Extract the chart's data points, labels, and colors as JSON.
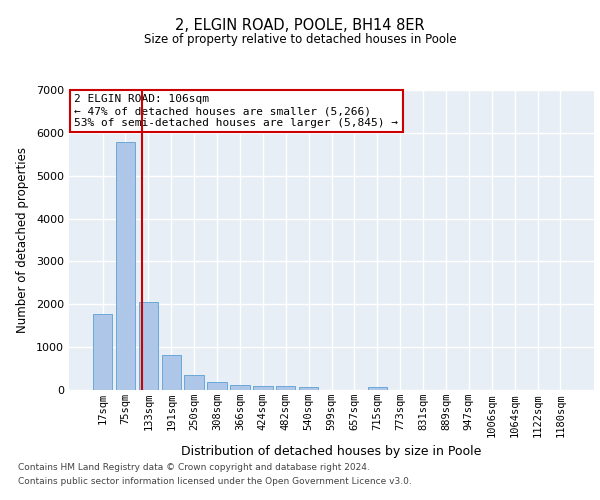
{
  "title_line1": "2, ELGIN ROAD, POOLE, BH14 8ER",
  "title_line2": "Size of property relative to detached houses in Poole",
  "xlabel": "Distribution of detached houses by size in Poole",
  "ylabel": "Number of detached properties",
  "categories": [
    "17sqm",
    "75sqm",
    "133sqm",
    "191sqm",
    "250sqm",
    "308sqm",
    "366sqm",
    "424sqm",
    "482sqm",
    "540sqm",
    "599sqm",
    "657sqm",
    "715sqm",
    "773sqm",
    "831sqm",
    "889sqm",
    "947sqm",
    "1006sqm",
    "1064sqm",
    "1122sqm",
    "1180sqm"
  ],
  "values": [
    1780,
    5780,
    2060,
    820,
    340,
    195,
    120,
    105,
    95,
    75,
    0,
    0,
    75,
    0,
    0,
    0,
    0,
    0,
    0,
    0,
    0
  ],
  "bar_color": "#aec6e8",
  "bar_edge_color": "#5a9fd4",
  "vline_x": 1.72,
  "vline_color": "#cc0000",
  "annotation_text": "2 ELGIN ROAD: 106sqm\n← 47% of detached houses are smaller (5,266)\n53% of semi-detached houses are larger (5,845) →",
  "annotation_box_color": "#ffffff",
  "annotation_border_color": "#cc0000",
  "ylim": [
    0,
    7000
  ],
  "yticks": [
    0,
    1000,
    2000,
    3000,
    4000,
    5000,
    6000,
    7000
  ],
  "bg_color": "#ffffff",
  "plot_bg_color": "#e8eef5",
  "grid_color": "#ffffff",
  "footer_line1": "Contains HM Land Registry data © Crown copyright and database right 2024.",
  "footer_line2": "Contains public sector information licensed under the Open Government Licence v3.0."
}
